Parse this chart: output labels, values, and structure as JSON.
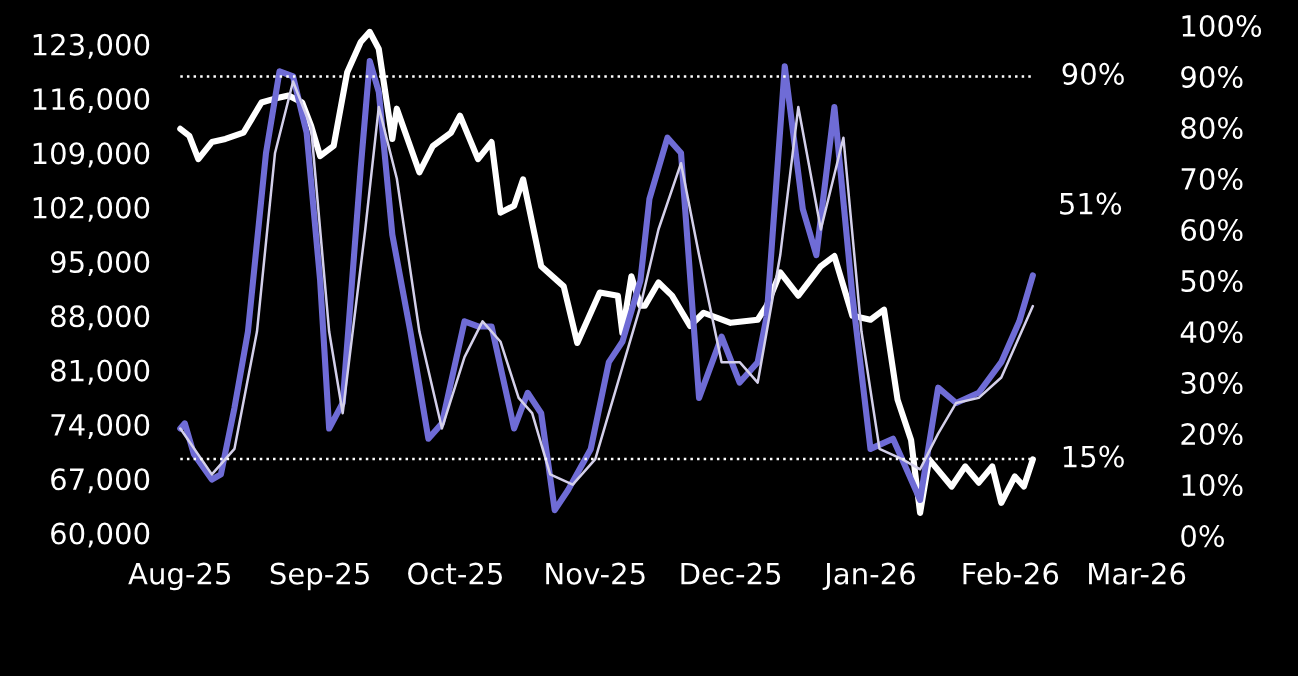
{
  "chart_data": {
    "type": "line",
    "grid": false,
    "legend": false,
    "line_style": "solid",
    "marker": "none",
    "xlim": [
      "2025-07-28",
      "2026-03-08"
    ],
    "xticks": [
      {
        "value": "2025-08-01",
        "label": "Aug-25"
      },
      {
        "value": "2025-09-01",
        "label": "Sep-25"
      },
      {
        "value": "2025-10-01",
        "label": "Oct-25"
      },
      {
        "value": "2025-11-01",
        "label": "Nov-25"
      },
      {
        "value": "2025-12-01",
        "label": "Dec-25"
      },
      {
        "value": "2026-01-01",
        "label": "Jan-26"
      },
      {
        "value": "2026-02-01",
        "label": "Feb-26"
      },
      {
        "value": "2026-03-01",
        "label": "Mar-26"
      }
    ],
    "ylim": [
      57700,
      127400
    ],
    "yticks": [
      {
        "value": 60000,
        "label": "60,000"
      },
      {
        "value": 67000,
        "label": "67,000"
      },
      {
        "value": 74000,
        "label": "74,000"
      },
      {
        "value": 81000,
        "label": "81,000"
      },
      {
        "value": 88000,
        "label": "88,000"
      },
      {
        "value": 95000,
        "label": "95,000"
      },
      {
        "value": 102000,
        "label": "102,000"
      },
      {
        "value": 109000,
        "label": "109,000"
      },
      {
        "value": 116000,
        "label": "116,000"
      },
      {
        "value": 123000,
        "label": "123,000"
      }
    ],
    "y2lim": [
      -3,
      103
    ],
    "y2ticks": [
      {
        "value": 0,
        "label": "0%"
      },
      {
        "value": 10,
        "label": "10%"
      },
      {
        "value": 20,
        "label": "20%"
      },
      {
        "value": 30,
        "label": "30%"
      },
      {
        "value": 40,
        "label": "40%"
      },
      {
        "value": 50,
        "label": "50%"
      },
      {
        "value": 60,
        "label": "60%"
      },
      {
        "value": 70,
        "label": "70%"
      },
      {
        "value": 80,
        "label": "80%"
      },
      {
        "value": 90,
        "label": "90%"
      },
      {
        "value": 100,
        "label": "100%"
      }
    ],
    "ref_lines": [
      {
        "axis": "y2",
        "value": 90,
        "label": "90%",
        "color": "#ffffff",
        "line_style": "dotted"
      },
      {
        "axis": "y2",
        "value": 15,
        "label": "15%",
        "color": "#ffffff",
        "line_style": "dotted"
      }
    ],
    "annotations": [
      "51%"
    ],
    "series": [
      {
        "color": "#6f6cd6",
        "axis": "y2",
        "x": [
          "2025-08-01",
          "2025-08-02",
          "2025-08-04",
          "2025-08-08",
          "2025-08-10",
          "2025-08-13",
          "2025-08-16",
          "2025-08-20",
          "2025-08-23",
          "2025-08-26",
          "2025-08-29",
          "2025-09-01",
          "2025-09-03",
          "2025-09-06",
          "2025-09-10",
          "2025-09-12",
          "2025-09-14",
          "2025-09-17",
          "2025-09-21",
          "2025-09-25",
          "2025-09-28",
          "2025-10-03",
          "2025-10-06",
          "2025-10-09",
          "2025-10-14",
          "2025-10-17",
          "2025-10-20",
          "2025-10-23",
          "2025-10-26",
          "2025-10-31",
          "2025-11-04",
          "2025-11-07",
          "2025-11-11",
          "2025-11-13",
          "2025-11-17",
          "2025-11-20",
          "2025-11-24",
          "2025-11-29",
          "2025-12-03",
          "2025-12-07",
          "2025-12-09",
          "2025-12-13",
          "2025-12-17",
          "2025-12-20",
          "2025-12-24",
          "2025-12-28",
          "2026-01-01",
          "2026-01-06",
          "2026-01-09",
          "2026-01-12",
          "2026-01-16",
          "2026-01-20",
          "2026-01-25",
          "2026-01-30",
          "2026-02-03",
          "2026-02-06"
        ],
        "values": [
          21,
          22,
          16,
          11,
          12,
          25,
          40,
          75,
          91,
          90,
          79,
          50,
          21,
          26,
          72,
          93,
          87,
          59,
          40,
          19,
          22,
          42,
          41,
          41,
          21,
          28,
          24,
          5,
          9,
          17,
          34,
          38,
          50,
          66,
          78,
          75,
          27,
          39,
          30,
          34,
          43,
          92,
          64,
          55,
          84,
          47,
          17,
          19,
          13,
          7,
          29,
          26,
          28,
          34,
          42,
          51
        ]
      },
      {
        "color": "#d4d0ea",
        "axis": "y2",
        "x": [
          "2025-08-01",
          "2025-08-08",
          "2025-08-13",
          "2025-08-18",
          "2025-08-22",
          "2025-08-26",
          "2025-08-30",
          "2025-09-03",
          "2025-09-06",
          "2025-09-11",
          "2025-09-14",
          "2025-09-18",
          "2025-09-23",
          "2025-09-28",
          "2025-10-03",
          "2025-10-07",
          "2025-10-11",
          "2025-10-15",
          "2025-10-18",
          "2025-10-22",
          "2025-10-27",
          "2025-11-01",
          "2025-11-06",
          "2025-11-11",
          "2025-11-15",
          "2025-11-20",
          "2025-11-24",
          "2025-11-29",
          "2025-12-03",
          "2025-12-07",
          "2025-12-12",
          "2025-12-16",
          "2025-12-21",
          "2025-12-26",
          "2025-12-30",
          "2026-01-03",
          "2026-01-08",
          "2026-01-12",
          "2026-01-16",
          "2026-01-20",
          "2026-01-25",
          "2026-01-30",
          "2026-02-06"
        ],
        "values": [
          21,
          12,
          17,
          40,
          75,
          89,
          80,
          40,
          24,
          60,
          84,
          70,
          40,
          21,
          35,
          42,
          38,
          27,
          24,
          12,
          10,
          15,
          30,
          45,
          60,
          73,
          55,
          34,
          34,
          30,
          55,
          84,
          60,
          78,
          40,
          17,
          15,
          13,
          20,
          26,
          27,
          31,
          45
        ]
      },
      {
        "color": "#ffffff",
        "x": [
          "2025-08-01",
          "2025-08-03",
          "2025-08-05",
          "2025-08-08",
          "2025-08-11",
          "2025-08-15",
          "2025-08-19",
          "2025-08-22",
          "2025-08-25",
          "2025-08-28",
          "2025-08-30",
          "2025-09-01",
          "2025-09-04",
          "2025-09-07",
          "2025-09-10",
          "2025-09-12",
          "2025-09-14",
          "2025-09-17",
          "2025-09-18",
          "2025-09-23",
          "2025-09-26",
          "2025-09-30",
          "2025-10-02",
          "2025-10-06",
          "2025-10-09",
          "2025-10-11",
          "2025-10-14",
          "2025-10-16",
          "2025-10-20",
          "2025-10-25",
          "2025-10-28",
          "2025-11-02",
          "2025-11-06",
          "2025-11-07",
          "2025-11-09",
          "2025-11-11",
          "2025-11-12",
          "2025-11-15",
          "2025-11-18",
          "2025-11-22",
          "2025-11-25",
          "2025-12-01",
          "2025-12-07",
          "2025-12-09",
          "2025-12-12",
          "2025-12-16",
          "2025-12-21",
          "2025-12-24",
          "2025-12-28",
          "2026-01-01",
          "2026-01-04",
          "2026-01-07",
          "2026-01-10",
          "2026-01-12",
          "2026-01-14",
          "2026-01-19",
          "2026-01-22",
          "2026-01-25",
          "2026-01-28",
          "2026-01-30",
          "2026-02-02",
          "2026-02-04",
          "2026-02-06"
        ],
        "values": [
          112100,
          111200,
          108200,
          110400,
          110800,
          111600,
          115500,
          116000,
          116400,
          115500,
          112500,
          108600,
          109900,
          119400,
          123300,
          124600,
          122400,
          110800,
          114700,
          106500,
          109900,
          111600,
          113800,
          108200,
          110400,
          101300,
          102200,
          105600,
          94400,
          91800,
          84500,
          91000,
          90600,
          85800,
          93100,
          89300,
          89300,
          92300,
          90600,
          86700,
          88400,
          87100,
          87500,
          89300,
          93600,
          90600,
          94400,
          95700,
          88000,
          87500,
          88800,
          77200,
          72000,
          62600,
          69500,
          66000,
          68600,
          66500,
          68600,
          63900,
          67300,
          66000,
          69500
        ]
      }
    ]
  }
}
